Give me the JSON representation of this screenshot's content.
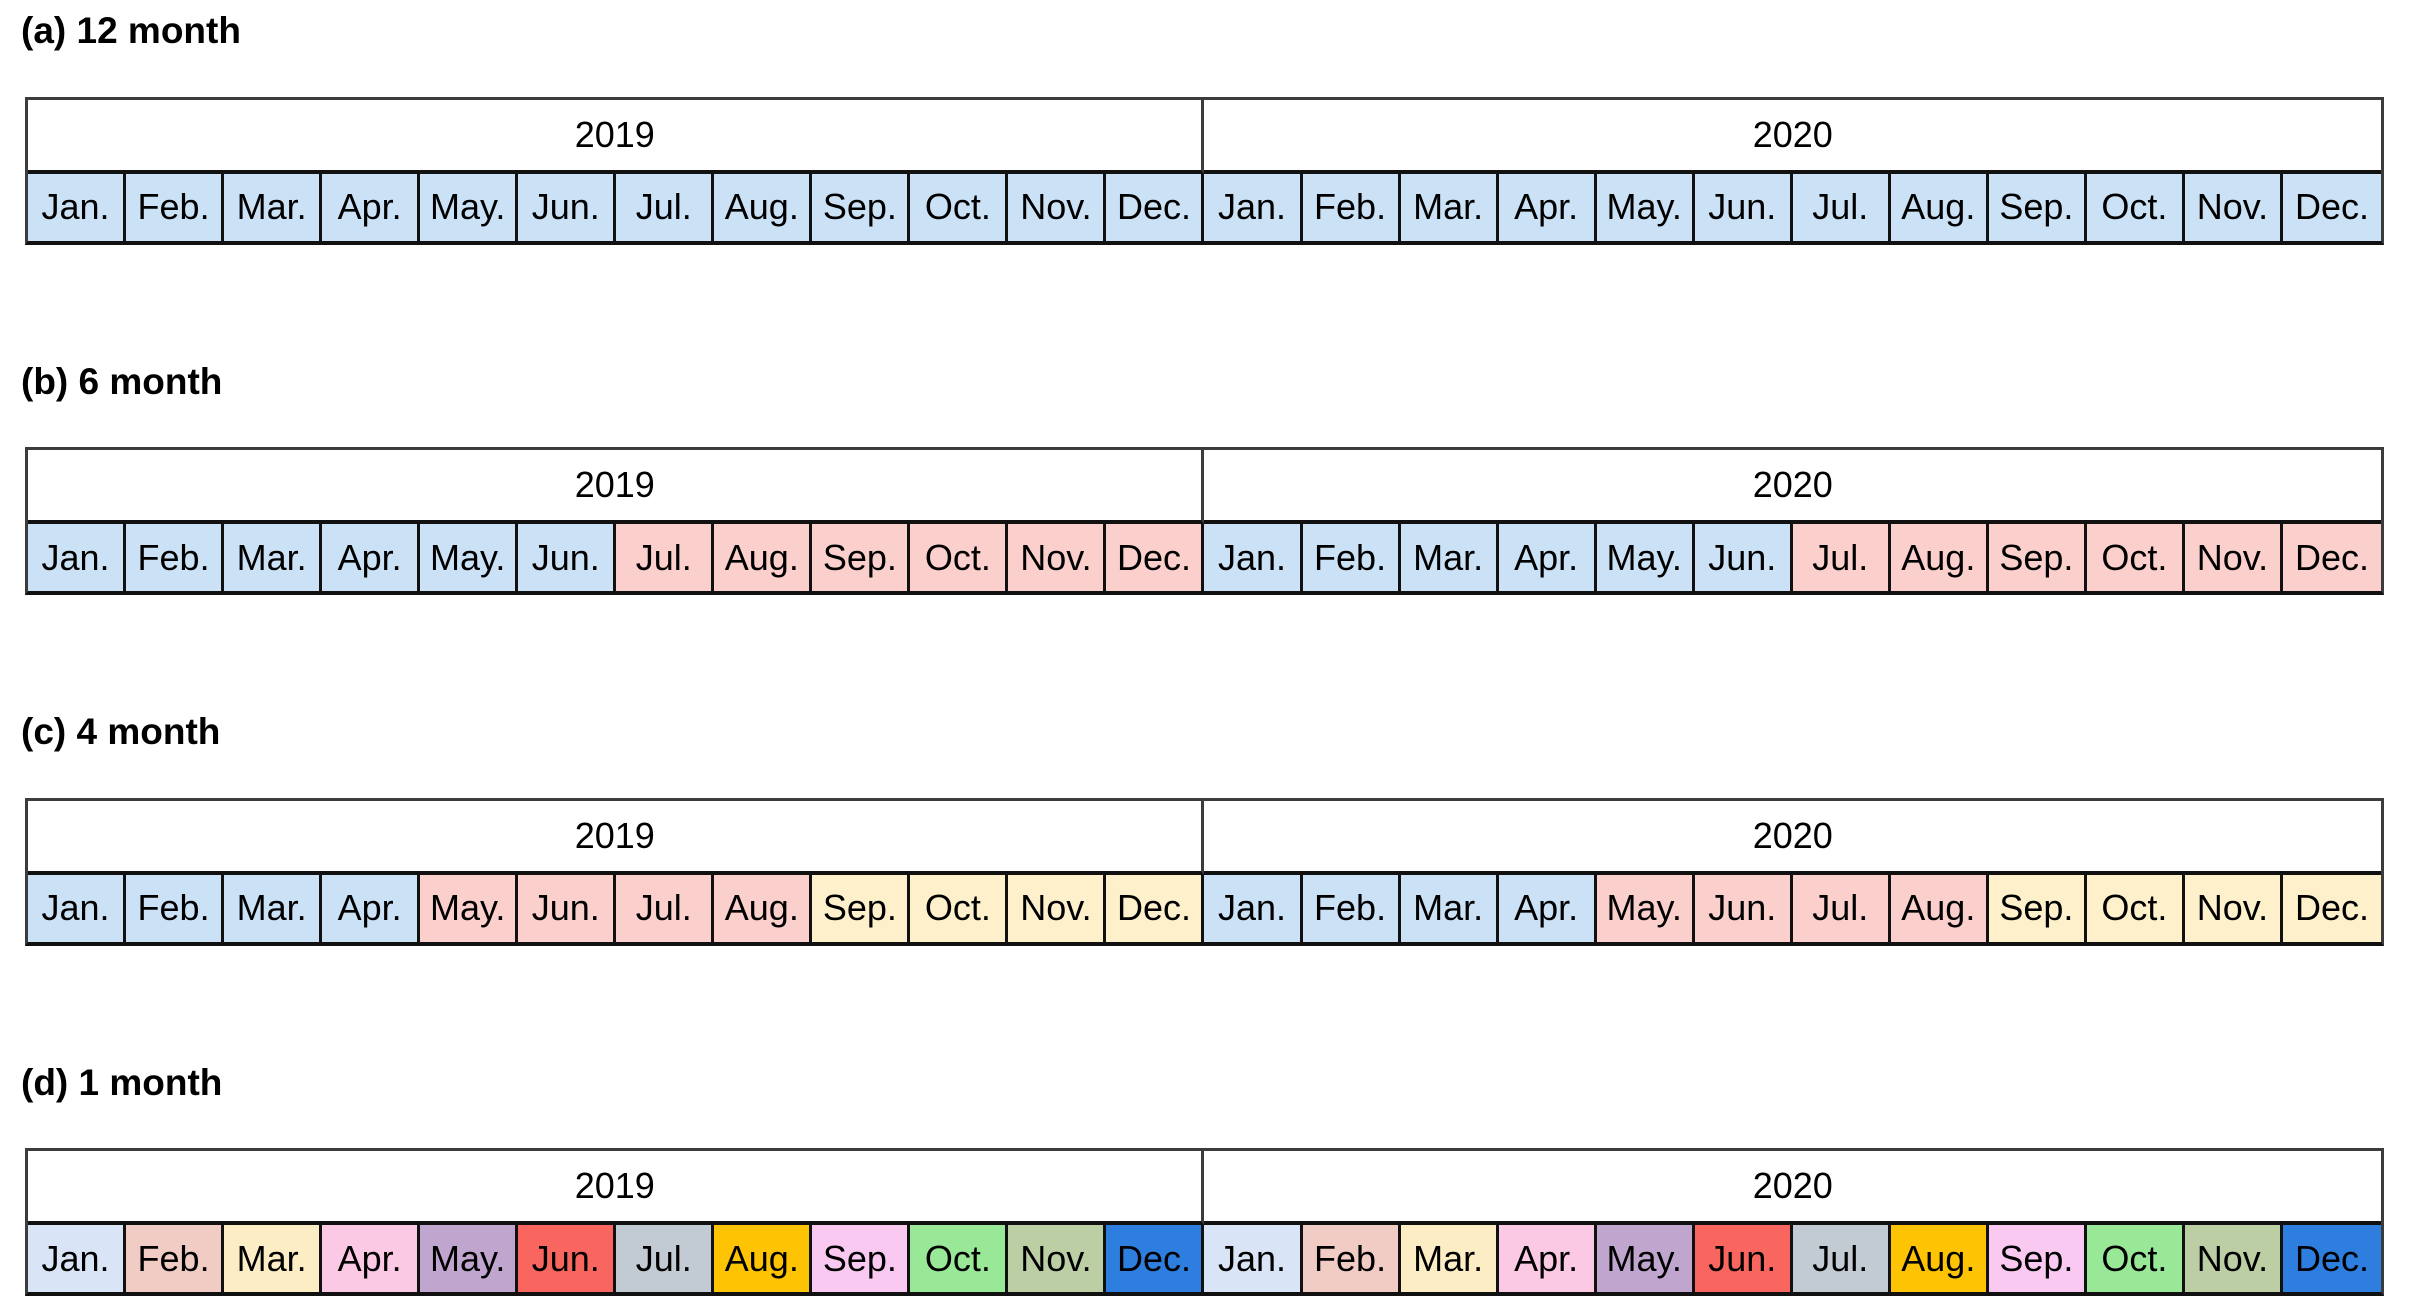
{
  "figure": {
    "description_labels": {
      "years": [
        "2019",
        "2020"
      ],
      "month_labels": [
        "Jan.",
        "Feb.",
        "Mar.",
        "Apr.",
        "May.",
        "Jun.",
        "Jul.",
        "Aug.",
        "Sep.",
        "Oct.",
        "Nov.",
        "Dec."
      ]
    },
    "palette": {
      "blue": "#cbe1f6",
      "pink": "#fbcfcb",
      "cream": "#fdf0cb",
      "m01": "#d9e5f6",
      "m02": "#f1ccc5",
      "m03": "#fcedc4",
      "m04": "#fbc9e4",
      "m05": "#c0a6ce",
      "m06": "#f9655f",
      "m07": "#c2cbd3",
      "m08": "#fec403",
      "m09": "#f9c9f1",
      "m10": "#98e898",
      "m11": "#bccfa4",
      "m12": "#2e7ee0"
    },
    "border_colors": {
      "header_outline": "#3c3c3c",
      "cell_line": "#111111"
    },
    "panels": [
      {
        "id": "a",
        "title": "(a) 12 month",
        "years": [
          "2019",
          "2020"
        ],
        "colors_2019": [
          "blue",
          "blue",
          "blue",
          "blue",
          "blue",
          "blue",
          "blue",
          "blue",
          "blue",
          "blue",
          "blue",
          "blue"
        ],
        "colors_2020": [
          "blue",
          "blue",
          "blue",
          "blue",
          "blue",
          "blue",
          "blue",
          "blue",
          "blue",
          "blue",
          "blue",
          "blue"
        ]
      },
      {
        "id": "b",
        "title": "(b) 6 month",
        "years": [
          "2019",
          "2020"
        ],
        "colors_2019": [
          "blue",
          "blue",
          "blue",
          "blue",
          "blue",
          "blue",
          "pink",
          "pink",
          "pink",
          "pink",
          "pink",
          "pink"
        ],
        "colors_2020": [
          "blue",
          "blue",
          "blue",
          "blue",
          "blue",
          "blue",
          "pink",
          "pink",
          "pink",
          "pink",
          "pink",
          "pink"
        ]
      },
      {
        "id": "c",
        "title": "(c) 4 month",
        "years": [
          "2019",
          "2020"
        ],
        "colors_2019": [
          "blue",
          "blue",
          "blue",
          "blue",
          "pink",
          "pink",
          "pink",
          "pink",
          "cream",
          "cream",
          "cream",
          "cream"
        ],
        "colors_2020": [
          "blue",
          "blue",
          "blue",
          "blue",
          "pink",
          "pink",
          "pink",
          "pink",
          "cream",
          "cream",
          "cream",
          "cream"
        ]
      },
      {
        "id": "d",
        "title": "(d) 1 month",
        "years": [
          "2019",
          "2020"
        ],
        "colors_2019": [
          "m01",
          "m02",
          "m03",
          "m04",
          "m05",
          "m06",
          "m07",
          "m08",
          "m09",
          "m10",
          "m11",
          "m12"
        ],
        "colors_2020": [
          "m01",
          "m02",
          "m03",
          "m04",
          "m05",
          "m06",
          "m07",
          "m08",
          "m09",
          "m10",
          "m11",
          "m12"
        ]
      }
    ]
  }
}
